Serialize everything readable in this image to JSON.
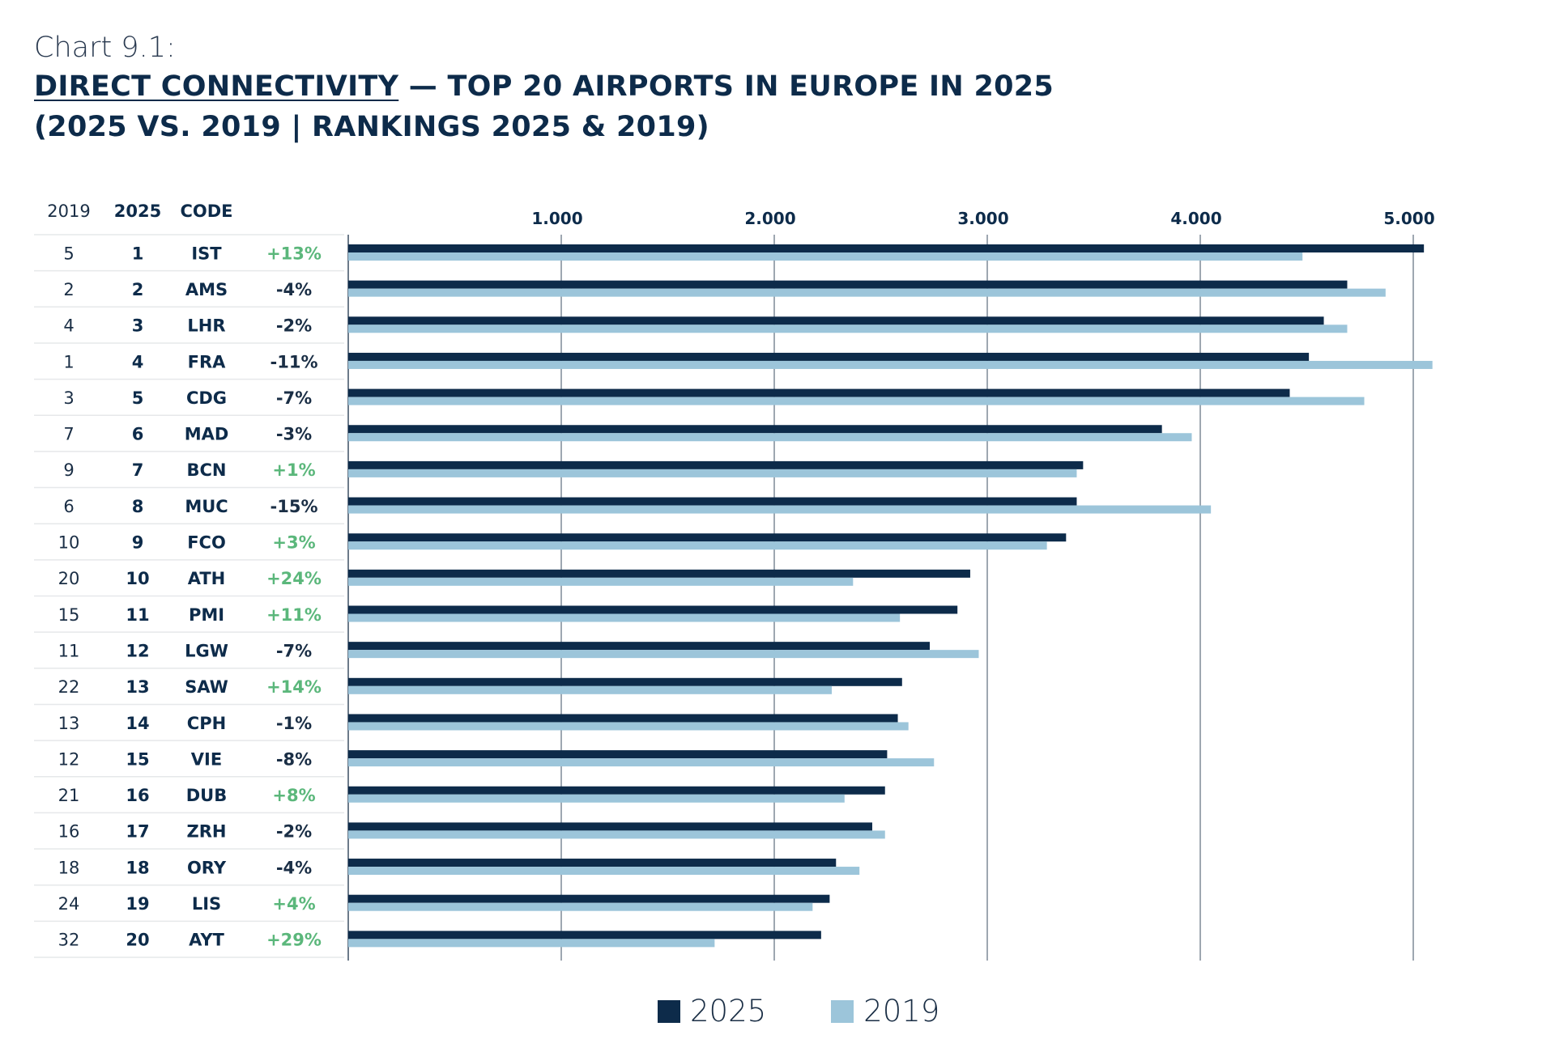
{
  "header": {
    "chart_label": "Chart 9.1:",
    "title_main": "DIRECT CONNECTIVITY",
    "title_rest": " — TOP 20 AIRPORTS IN EUROPE IN 2025",
    "subtitle": "(2025 VS. 2019 | RANKINGS 2025 & 2019)"
  },
  "colors": {
    "series_2025": "#0d2b4a",
    "series_2019": "#9cc5da",
    "positive": "#5bb77b",
    "negative": "#1a2e45",
    "grid": "#3c4f63",
    "row_line": "#e6e8ea"
  },
  "chart_data": {
    "type": "bar",
    "orientation": "horizontal",
    "table_headers": [
      "2019",
      "2025",
      "CODE"
    ],
    "categories": [
      "IST",
      "AMS",
      "LHR",
      "FRA",
      "CDG",
      "MAD",
      "BCN",
      "MUC",
      "FCO",
      "ATH",
      "PMI",
      "LGW",
      "SAW",
      "CPH",
      "VIE",
      "DUB",
      "ZRH",
      "ORY",
      "LIS",
      "AYT"
    ],
    "rank_2019": [
      5,
      2,
      4,
      1,
      3,
      7,
      9,
      6,
      10,
      20,
      15,
      11,
      22,
      13,
      12,
      21,
      16,
      18,
      24,
      32
    ],
    "rank_2025": [
      1,
      2,
      3,
      4,
      5,
      6,
      7,
      8,
      9,
      10,
      11,
      12,
      13,
      14,
      15,
      16,
      17,
      18,
      19,
      20
    ],
    "change": [
      "+13%",
      "-4%",
      "-2%",
      "-11%",
      "-7%",
      "-3%",
      "+1%",
      "-15%",
      "+3%",
      "+24%",
      "+11%",
      "-7%",
      "+14%",
      "-1%",
      "-8%",
      "+8%",
      "-2%",
      "-4%",
      "+4%",
      "+29%"
    ],
    "series": [
      {
        "name": "2025",
        "values": [
          5050,
          4690,
          4580,
          4510,
          4420,
          3820,
          3450,
          3420,
          3370,
          2920,
          2860,
          2730,
          2600,
          2580,
          2530,
          2520,
          2460,
          2290,
          2260,
          2220
        ]
      },
      {
        "name": "2019",
        "values": [
          4480,
          4870,
          4690,
          5090,
          4770,
          3960,
          3420,
          4050,
          3280,
          2370,
          2590,
          2960,
          2270,
          2630,
          2750,
          2330,
          2520,
          2400,
          2180,
          1720
        ]
      }
    ],
    "xticks": [
      1000,
      2000,
      3000,
      4000,
      5000
    ],
    "xtick_labels": [
      "1.000",
      "2.000",
      "3.000",
      "4.000",
      "5.000"
    ],
    "xlim": [
      0,
      5300
    ],
    "grid": true,
    "legend": "bottom-center"
  }
}
